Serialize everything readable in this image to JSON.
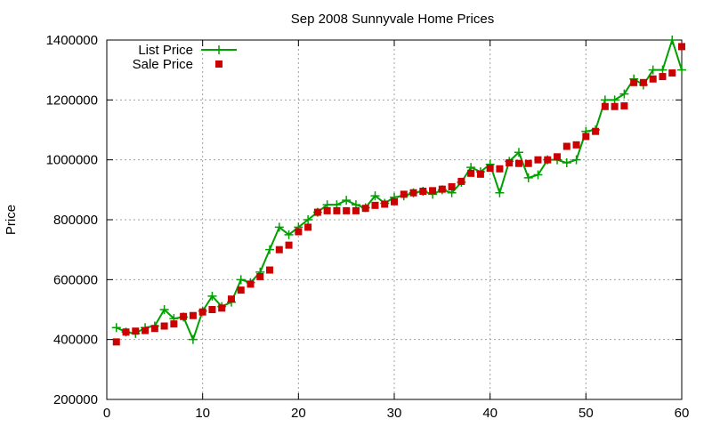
{
  "chart_data": {
    "type": "line",
    "title": "Sep 2008 Sunnyvale Home Prices",
    "xlabel": "",
    "ylabel": "Price",
    "xlim": [
      0,
      60
    ],
    "ylim": [
      200000,
      1400000
    ],
    "xticks": [
      0,
      10,
      20,
      30,
      40,
      50,
      60
    ],
    "yticks": [
      200000,
      400000,
      600000,
      800000,
      1000000,
      1200000,
      1400000
    ],
    "grid": true,
    "legend_position": "top-left",
    "series": [
      {
        "name": "List Price",
        "style": "line-plus",
        "color": "#00a000",
        "x": [
          1,
          2,
          3,
          4,
          5,
          6,
          7,
          8,
          9,
          10,
          11,
          12,
          13,
          14,
          15,
          16,
          17,
          18,
          19,
          20,
          21,
          22,
          23,
          24,
          25,
          26,
          27,
          28,
          29,
          30,
          31,
          32,
          33,
          34,
          35,
          36,
          37,
          38,
          39,
          40,
          41,
          42,
          43,
          44,
          45,
          46,
          47,
          48,
          49,
          50,
          51,
          52,
          53,
          54,
          55,
          56,
          57,
          58,
          59,
          60
        ],
        "values": [
          440000,
          425000,
          420000,
          440000,
          445000,
          500000,
          470000,
          475000,
          400000,
          495000,
          545000,
          510000,
          525000,
          600000,
          590000,
          625000,
          700000,
          775000,
          750000,
          775000,
          800000,
          825000,
          850000,
          850000,
          865000,
          850000,
          840000,
          880000,
          855000,
          875000,
          880000,
          890000,
          895000,
          885000,
          900000,
          890000,
          925000,
          975000,
          960000,
          985000,
          890000,
          995000,
          1025000,
          940000,
          950000,
          1000000,
          1000000,
          990000,
          1000000,
          1095000,
          1100000,
          1200000,
          1200000,
          1220000,
          1270000,
          1250000,
          1300000,
          1300000,
          1400000,
          1300000
        ]
      },
      {
        "name": "Sale Price",
        "style": "points-square",
        "color": "#cc0000",
        "x": [
          1,
          2,
          3,
          4,
          5,
          6,
          7,
          8,
          9,
          10,
          11,
          12,
          13,
          14,
          15,
          16,
          17,
          18,
          19,
          20,
          21,
          22,
          23,
          24,
          25,
          26,
          27,
          28,
          29,
          30,
          31,
          32,
          33,
          34,
          35,
          36,
          37,
          38,
          39,
          40,
          41,
          42,
          43,
          44,
          45,
          46,
          47,
          48,
          49,
          50,
          51,
          52,
          53,
          54,
          55,
          56,
          57,
          58,
          59,
          60
        ],
        "values": [
          392000,
          425000,
          428000,
          430000,
          437000,
          445000,
          452000,
          477000,
          480000,
          492000,
          500000,
          505000,
          535000,
          565000,
          585000,
          610000,
          632000,
          700000,
          715000,
          760000,
          775000,
          825000,
          830000,
          830000,
          830000,
          830000,
          838000,
          848000,
          852000,
          860000,
          885000,
          890000,
          895000,
          897000,
          902000,
          910000,
          928000,
          955000,
          952000,
          972000,
          970000,
          990000,
          988000,
          988000,
          1000000,
          1000000,
          1010000,
          1045000,
          1050000,
          1078000,
          1095000,
          1178000,
          1178000,
          1180000,
          1258000,
          1258000,
          1270000,
          1278000,
          1290000,
          1378000
        ]
      }
    ]
  }
}
